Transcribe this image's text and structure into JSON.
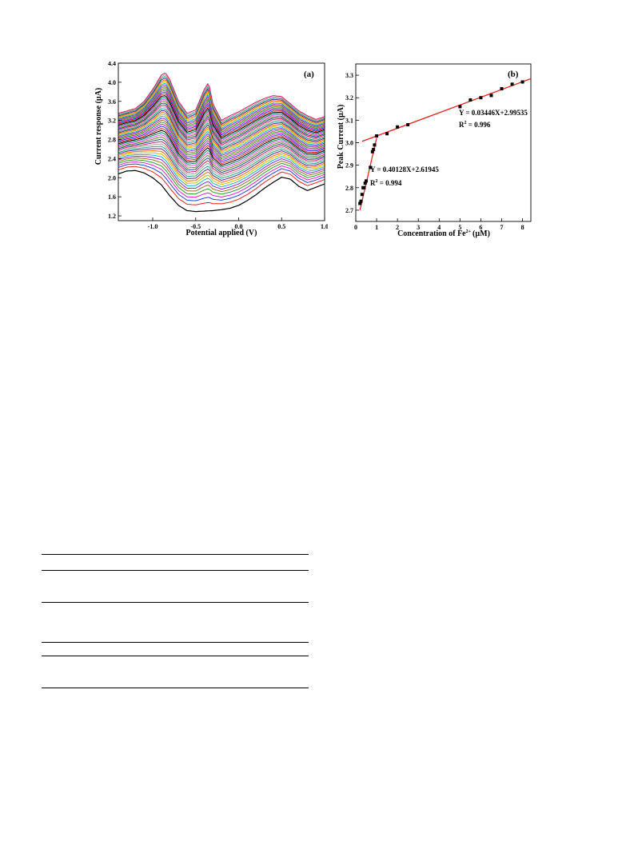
{
  "colors": {
    "fit_line": "#e8231f",
    "marker": "#000000",
    "frame": "#000000",
    "curve_palette": [
      "#000000",
      "#e8231f",
      "#1f3fe0",
      "#e020c8",
      "#2a9a2a",
      "#9c6a2a",
      "#8a2ad8",
      "#1ab0c8",
      "#c0c000",
      "#ff6a00",
      "#5a2a8a",
      "#2aa080",
      "#a0a0a0",
      "#d02060",
      "#204a90",
      "#6a8a20",
      "#ff40ff",
      "#008060"
    ]
  },
  "chart_data": [
    {
      "type": "line",
      "panel_tag": "(a)",
      "xlabel": "Potential applied (V)",
      "ylabel": "Current response (µA)",
      "xlim": [
        -1.4,
        1.0
      ],
      "ylim": [
        1.1,
        4.4
      ],
      "xticks": [
        "-1.0",
        "-0.5",
        "0.0",
        "0.5",
        "1.0"
      ],
      "yticks": [
        "1.2",
        "1.6",
        "2.0",
        "2.4",
        "2.8",
        "3.2",
        "3.6",
        "4.0",
        "4.4"
      ],
      "grid": false,
      "legend": "none",
      "series_count": 50,
      "baseline_curve": {
        "x": [
          -1.4,
          -1.3,
          -1.2,
          -1.1,
          -1.0,
          -0.9,
          -0.8,
          -0.7,
          -0.6,
          -0.5,
          -0.4,
          -0.3,
          -0.2,
          -0.1,
          0.0,
          0.1,
          0.2,
          0.3,
          0.4,
          0.5,
          0.6,
          0.7,
          0.8,
          0.9,
          1.0
        ],
        "y": [
          2.08,
          2.14,
          2.15,
          2.1,
          2.0,
          1.85,
          1.62,
          1.42,
          1.31,
          1.29,
          1.3,
          1.31,
          1.33,
          1.36,
          1.42,
          1.52,
          1.64,
          1.78,
          1.9,
          2.01,
          1.97,
          1.82,
          1.73,
          1.8,
          1.87
        ]
      },
      "top_curve": {
        "x": [
          -1.4,
          -1.3,
          -1.2,
          -1.1,
          -1.0,
          -0.9,
          -0.85,
          -0.8,
          -0.7,
          -0.6,
          -0.5,
          -0.4,
          -0.35,
          -0.3,
          -0.2,
          -0.1,
          0.0,
          0.1,
          0.2,
          0.3,
          0.4,
          0.5,
          0.6,
          0.7,
          0.8,
          0.9,
          1.0
        ],
        "y": [
          3.35,
          3.4,
          3.45,
          3.6,
          3.85,
          4.15,
          4.2,
          4.05,
          3.6,
          3.35,
          3.42,
          3.85,
          4.0,
          3.55,
          3.2,
          3.3,
          3.38,
          3.48,
          3.58,
          3.66,
          3.72,
          3.7,
          3.55,
          3.4,
          3.3,
          3.22,
          3.28
        ]
      }
    },
    {
      "type": "scatter",
      "panel_tag": "(b)",
      "xlabel": "Concentration of Fe",
      "xlabel_sup": "2+",
      "xlabel_unit": "(µM)",
      "ylabel": "Peak Current (µA)",
      "xlim": [
        0,
        8.4
      ],
      "ylim": [
        2.65,
        3.35
      ],
      "xticks": [
        "0",
        "1",
        "2",
        "3",
        "4",
        "5",
        "6",
        "7",
        "8"
      ],
      "yticks": [
        "2.7",
        "2.8",
        "2.9",
        "3.0",
        "3.1",
        "3.2",
        "3.3"
      ],
      "grid": false,
      "legend": "none",
      "points": {
        "x": [
          0.2,
          0.25,
          0.3,
          0.35,
          0.4,
          0.45,
          0.5,
          0.7,
          0.8,
          0.85,
          0.9,
          1.0,
          1.5,
          2.0,
          2.5,
          5.0,
          5.5,
          6.0,
          6.5,
          7.0,
          7.5,
          8.0
        ],
        "y": [
          2.73,
          2.74,
          2.77,
          2.8,
          2.8,
          2.82,
          2.83,
          2.89,
          2.96,
          2.97,
          2.99,
          3.03,
          3.04,
          3.07,
          3.08,
          3.16,
          3.19,
          3.2,
          3.21,
          3.24,
          3.26,
          3.27
        ]
      },
      "fits": [
        {
          "equation": "Y = 0.40128X+2.61945",
          "r2_prefix": "R",
          "r2_sup": "2",
          "r2_value": " = 0.994",
          "slope": 0.40128,
          "intercept": 2.61945,
          "x_range": [
            0.2,
            1.0
          ]
        },
        {
          "equation": "Y = 0.03446X+2.99535",
          "r2_prefix": "R",
          "r2_sup": "2",
          "r2_value": " = 0.996",
          "slope": 0.03446,
          "intercept": 2.99535,
          "x_range": [
            0.3,
            8.4
          ]
        }
      ]
    }
  ]
}
